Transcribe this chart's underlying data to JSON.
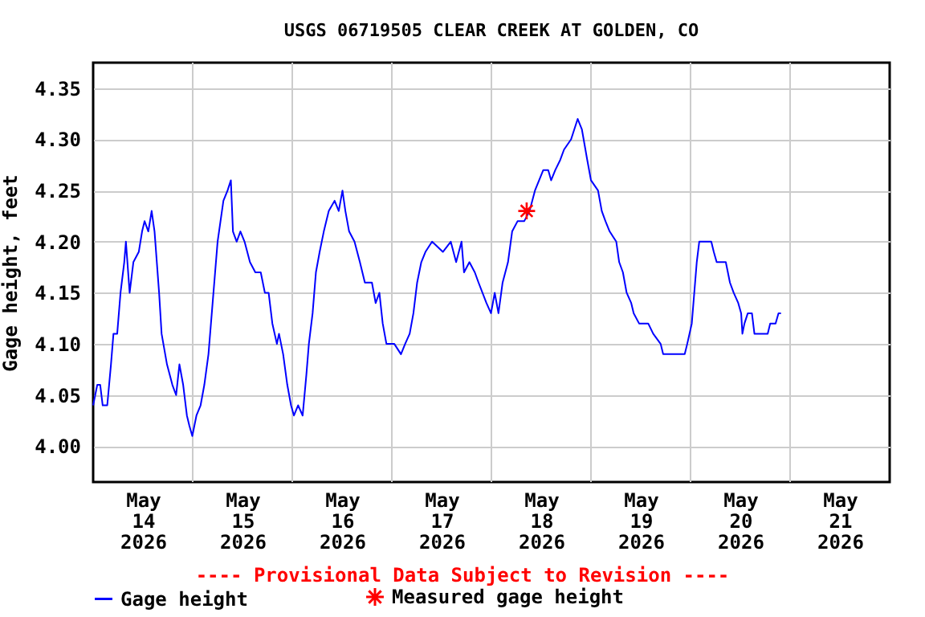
{
  "chart_data": {
    "type": "line",
    "title": "USGS 06719505 CLEAR CREEK AT GOLDEN, CO",
    "ylabel": "Gage height, feet",
    "annotations": [
      "---- Provisional Data Subject to Revision ----"
    ],
    "xlim": [
      "2026-05-14T00:00",
      "2026-05-22T00:00"
    ],
    "xticks": [
      {
        "value": "2026-05-14T12:00",
        "label": "May 14 2026"
      },
      {
        "value": "2026-05-15T00:00",
        "label": null
      },
      {
        "value": "2026-05-15T12:00",
        "label": "May 15 2026"
      },
      {
        "value": "2026-05-16T00:00",
        "label": null
      },
      {
        "value": "2026-05-16T12:00",
        "label": "May 16 2026"
      },
      {
        "value": "2026-05-17T00:00",
        "label": null
      },
      {
        "value": "2026-05-17T12:00",
        "label": "May 17 2026"
      },
      {
        "value": "2026-05-18T00:00",
        "label": null
      },
      {
        "value": "2026-05-18T12:00",
        "label": "May 18 2026"
      },
      {
        "value": "2026-05-19T00:00",
        "label": null
      },
      {
        "value": "2026-05-19T12:00",
        "label": "May 19 2026"
      },
      {
        "value": "2026-05-20T00:00",
        "label": null
      },
      {
        "value": "2026-05-20T12:00",
        "label": "May 20 2026"
      },
      {
        "value": "2026-05-21T00:00",
        "label": null
      },
      {
        "value": "2026-05-21T12:00",
        "label": "May 21 2026"
      }
    ],
    "ylim": [
      3.965,
      4.375
    ],
    "yticks": [
      {
        "value": 4,
        "label": "4.00"
      },
      4.05,
      {
        "value": 4.1,
        "label": "4.10"
      },
      4.15,
      {
        "value": 4.2,
        "label": "4.20"
      },
      4.25,
      {
        "value": 4.3,
        "label": "4.30"
      },
      4.35
    ],
    "grid": true,
    "legend": "bottom",
    "series": [
      {
        "name": "Gage height",
        "type": "line",
        "color": "#0000ff",
        "line_style": "solid",
        "marker": "none",
        "x": [
          "2026-05-14T00:00",
          "2026-05-14T01:00",
          "2026-05-14T01:42",
          "2026-05-14T02:18",
          "2026-05-14T03:24",
          "2026-05-14T04:18",
          "2026-05-14T04:54",
          "2026-05-14T05:48",
          "2026-05-14T06:36",
          "2026-05-14T07:30",
          "2026-05-14T07:54",
          "2026-05-14T08:48",
          "2026-05-14T09:42",
          "2026-05-14T11:00",
          "2026-05-14T11:48",
          "2026-05-14T12:24",
          "2026-05-14T13:18",
          "2026-05-14T14:06",
          "2026-05-14T14:48",
          "2026-05-14T15:54",
          "2026-05-14T16:30",
          "2026-05-14T17:48",
          "2026-05-14T19:06",
          "2026-05-14T20:00",
          "2026-05-14T20:48",
          "2026-05-14T21:42",
          "2026-05-14T22:36",
          "2026-05-14T23:12",
          "2026-05-14T23:54",
          "2026-05-15T00:54",
          "2026-05-15T01:54",
          "2026-05-15T02:48",
          "2026-05-15T03:48",
          "2026-05-15T04:48",
          "2026-05-15T05:24",
          "2026-05-15T06:00",
          "2026-05-15T07:24",
          "2026-05-15T08:24",
          "2026-05-15T09:12",
          "2026-05-15T09:42",
          "2026-05-15T10:36",
          "2026-05-15T11:30",
          "2026-05-15T12:30",
          "2026-05-15T13:48",
          "2026-05-15T15:06",
          "2026-05-15T16:24",
          "2026-05-15T17:24",
          "2026-05-15T18:18",
          "2026-05-15T19:12",
          "2026-05-15T20:18",
          "2026-05-15T20:48",
          "2026-05-15T21:48",
          "2026-05-15T22:48",
          "2026-05-15T23:42",
          "2026-05-16T00:24",
          "2026-05-16T01:24",
          "2026-05-16T02:30",
          "2026-05-16T03:24",
          "2026-05-16T04:00",
          "2026-05-16T04:54",
          "2026-05-16T05:42",
          "2026-05-16T06:36",
          "2026-05-16T07:36",
          "2026-05-16T08:48",
          "2026-05-16T10:12",
          "2026-05-16T11:12",
          "2026-05-16T12:06",
          "2026-05-16T12:48",
          "2026-05-16T13:42",
          "2026-05-16T15:00",
          "2026-05-16T16:18",
          "2026-05-16T17:30",
          "2026-05-16T19:12",
          "2026-05-16T20:06",
          "2026-05-16T21:00",
          "2026-05-16T21:48",
          "2026-05-16T22:42",
          "2026-05-17T00:36",
          "2026-05-17T02:12",
          "2026-05-17T03:12",
          "2026-05-17T04:18",
          "2026-05-17T05:12",
          "2026-05-17T06:06",
          "2026-05-17T07:06",
          "2026-05-17T08:06",
          "2026-05-17T09:42",
          "2026-05-17T12:18",
          "2026-05-17T14:12",
          "2026-05-17T15:30",
          "2026-05-17T16:48",
          "2026-05-17T17:24",
          "2026-05-17T18:42",
          "2026-05-17T20:00",
          "2026-05-17T20:54",
          "2026-05-17T22:48",
          "2026-05-17T23:54",
          "2026-05-18T00:48",
          "2026-05-18T01:42",
          "2026-05-18T02:42",
          "2026-05-18T04:00",
          "2026-05-18T05:00",
          "2026-05-18T06:18",
          "2026-05-18T07:54",
          "2026-05-18T09:12",
          "2026-05-18T10:30",
          "2026-05-18T11:30",
          "2026-05-18T12:30",
          "2026-05-18T13:42",
          "2026-05-18T14:24",
          "2026-05-18T15:24",
          "2026-05-18T16:36",
          "2026-05-18T17:30",
          "2026-05-18T19:12",
          "2026-05-18T20:48",
          "2026-05-18T21:48",
          "2026-05-18T23:06",
          "2026-05-19T00:00",
          "2026-05-19T01:42",
          "2026-05-19T02:36",
          "2026-05-19T03:30",
          "2026-05-19T04:30",
          "2026-05-19T06:06",
          "2026-05-19T06:48",
          "2026-05-19T07:42",
          "2026-05-19T08:36",
          "2026-05-19T09:42",
          "2026-05-19T10:18",
          "2026-05-19T11:36",
          "2026-05-19T13:48",
          "2026-05-19T15:00",
          "2026-05-19T16:48",
          "2026-05-19T17:24",
          "2026-05-19T22:36",
          "2026-05-19T23:12",
          "2026-05-20T00:18",
          "2026-05-20T00:54",
          "2026-05-20T01:30",
          "2026-05-20T02:06",
          "2026-05-20T05:00",
          "2026-05-20T05:36",
          "2026-05-20T06:18",
          "2026-05-20T08:30",
          "2026-05-20T09:30",
          "2026-05-20T10:24",
          "2026-05-20T11:30",
          "2026-05-20T12:12",
          "2026-05-20T12:30",
          "2026-05-20T13:00",
          "2026-05-20T13:48",
          "2026-05-20T14:48",
          "2026-05-20T15:24",
          "2026-05-20T18:36",
          "2026-05-20T19:12",
          "2026-05-20T20:30",
          "2026-05-20T21:12",
          "2026-05-20T21:48"
        ],
        "values": [
          4.04,
          4.06,
          4.06,
          4.04,
          4.04,
          4.08,
          4.11,
          4.11,
          4.15,
          4.18,
          4.2,
          4.15,
          4.18,
          4.19,
          4.21,
          4.22,
          4.21,
          4.23,
          4.21,
          4.15,
          4.11,
          4.08,
          4.06,
          4.05,
          4.08,
          4.06,
          4.03,
          4.02,
          4.01,
          4.03,
          4.04,
          4.06,
          4.09,
          4.14,
          4.17,
          4.2,
          4.24,
          4.25,
          4.26,
          4.21,
          4.2,
          4.21,
          4.2,
          4.18,
          4.17,
          4.17,
          4.15,
          4.15,
          4.12,
          4.1,
          4.11,
          4.09,
          4.06,
          4.04,
          4.03,
          4.04,
          4.03,
          4.07,
          4.1,
          4.13,
          4.17,
          4.19,
          4.21,
          4.23,
          4.24,
          4.23,
          4.25,
          4.23,
          4.21,
          4.2,
          4.18,
          4.16,
          4.16,
          4.14,
          4.15,
          4.12,
          4.1,
          4.1,
          4.09,
          4.1,
          4.11,
          4.13,
          4.16,
          4.18,
          4.19,
          4.2,
          4.19,
          4.2,
          4.18,
          4.2,
          4.17,
          4.18,
          4.17,
          4.16,
          4.14,
          4.13,
          4.15,
          4.13,
          4.16,
          4.18,
          4.21,
          4.22,
          4.22,
          4.23,
          4.25,
          4.26,
          4.27,
          4.27,
          4.26,
          4.27,
          4.28,
          4.29,
          4.3,
          4.32,
          4.31,
          4.28,
          4.26,
          4.25,
          4.23,
          4.22,
          4.21,
          4.2,
          4.18,
          4.17,
          4.15,
          4.14,
          4.13,
          4.12,
          4.12,
          4.11,
          4.1,
          4.09,
          4.09,
          4.1,
          4.12,
          4.15,
          4.18,
          4.2,
          4.2,
          4.19,
          4.18,
          4.18,
          4.16,
          4.15,
          4.14,
          4.13,
          4.11,
          4.12,
          4.13,
          4.13,
          4.11,
          4.11,
          4.12,
          4.12,
          4.13,
          4.13
        ]
      },
      {
        "name": "Measured gage height",
        "type": "scatter",
        "color": "#ff0000",
        "marker": "cross",
        "x": [
          "2026-05-18T08:30"
        ],
        "values": [
          4.23
        ]
      }
    ]
  }
}
